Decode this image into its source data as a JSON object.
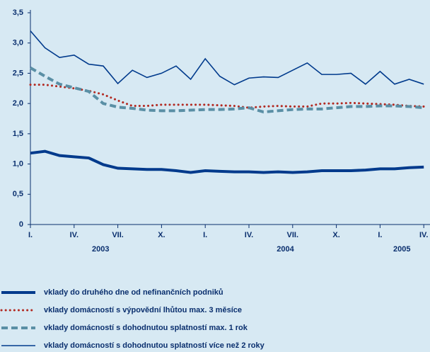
{
  "chart_data": {
    "type": "line",
    "categories": [
      "I.",
      null,
      null,
      "IV.",
      null,
      null,
      "VII.",
      null,
      null,
      "X.",
      null,
      null,
      "I.",
      null,
      null,
      "IV.",
      null,
      null,
      "VII.",
      null,
      null,
      "X.",
      null,
      null,
      "I.",
      null,
      null,
      "IV."
    ],
    "x_groups": [
      "2003",
      "2004",
      "2005"
    ],
    "ylim": [
      0,
      3.5
    ],
    "yticks": [
      0,
      {
        "value": 0.5,
        "label": "0,5"
      },
      {
        "value": 1,
        "label": "1,0"
      },
      {
        "value": 1.5,
        "label": "1,5"
      },
      {
        "value": 2,
        "label": "2,0"
      },
      {
        "value": 2.5,
        "label": "2,5"
      },
      {
        "value": 3,
        "label": "3,0"
      },
      {
        "value": 3.5,
        "label": "3,5"
      }
    ],
    "grid": false,
    "series": [
      {
        "name": "vklady do druhého dne od nefinančních podniků",
        "color": "#003a8c",
        "style": "thick",
        "values": [
          1.18,
          1.21,
          1.14,
          1.12,
          1.1,
          0.99,
          0.93,
          0.92,
          0.91,
          0.91,
          0.89,
          0.86,
          0.89,
          0.88,
          0.87,
          0.87,
          0.86,
          0.87,
          0.86,
          0.87,
          0.89,
          0.89,
          0.89,
          0.9,
          0.92,
          0.92,
          0.94,
          0.95
        ]
      },
      {
        "name": "vklady domácností s výpovědní lhůtou max. 3 měsíce",
        "color": "#b22a22",
        "style": "dotted",
        "values": [
          2.31,
          2.31,
          2.28,
          2.25,
          2.21,
          2.15,
          2.05,
          1.96,
          1.96,
          1.98,
          1.98,
          1.98,
          1.98,
          1.97,
          1.96,
          1.93,
          1.95,
          1.96,
          1.95,
          1.95,
          2.0,
          2.0,
          2.01,
          2.0,
          1.99,
          1.98,
          1.96,
          1.95
        ]
      },
      {
        "name": "vklady domácností s dohodnutou splatností max. 1 rok",
        "color": "#5a8fa5",
        "style": "dashed",
        "values": [
          2.59,
          2.45,
          2.32,
          2.26,
          2.2,
          2.0,
          1.94,
          1.92,
          1.89,
          1.88,
          1.88,
          1.89,
          1.9,
          1.9,
          1.91,
          1.93,
          1.86,
          1.88,
          1.9,
          1.91,
          1.91,
          1.93,
          1.95,
          1.95,
          1.96,
          1.96,
          1.95,
          1.93
        ]
      },
      {
        "name": "vklady domácností s dohodnutou splatností více než 2 roky",
        "color": "#003a8c",
        "style": "thin",
        "values": [
          3.2,
          2.92,
          2.76,
          2.8,
          2.65,
          2.62,
          2.33,
          2.55,
          2.43,
          2.5,
          2.62,
          2.4,
          2.74,
          2.45,
          2.31,
          2.42,
          2.44,
          2.43,
          2.55,
          2.67,
          2.48,
          2.48,
          2.5,
          2.32,
          2.53,
          2.32,
          2.4,
          2.32
        ]
      }
    ]
  }
}
